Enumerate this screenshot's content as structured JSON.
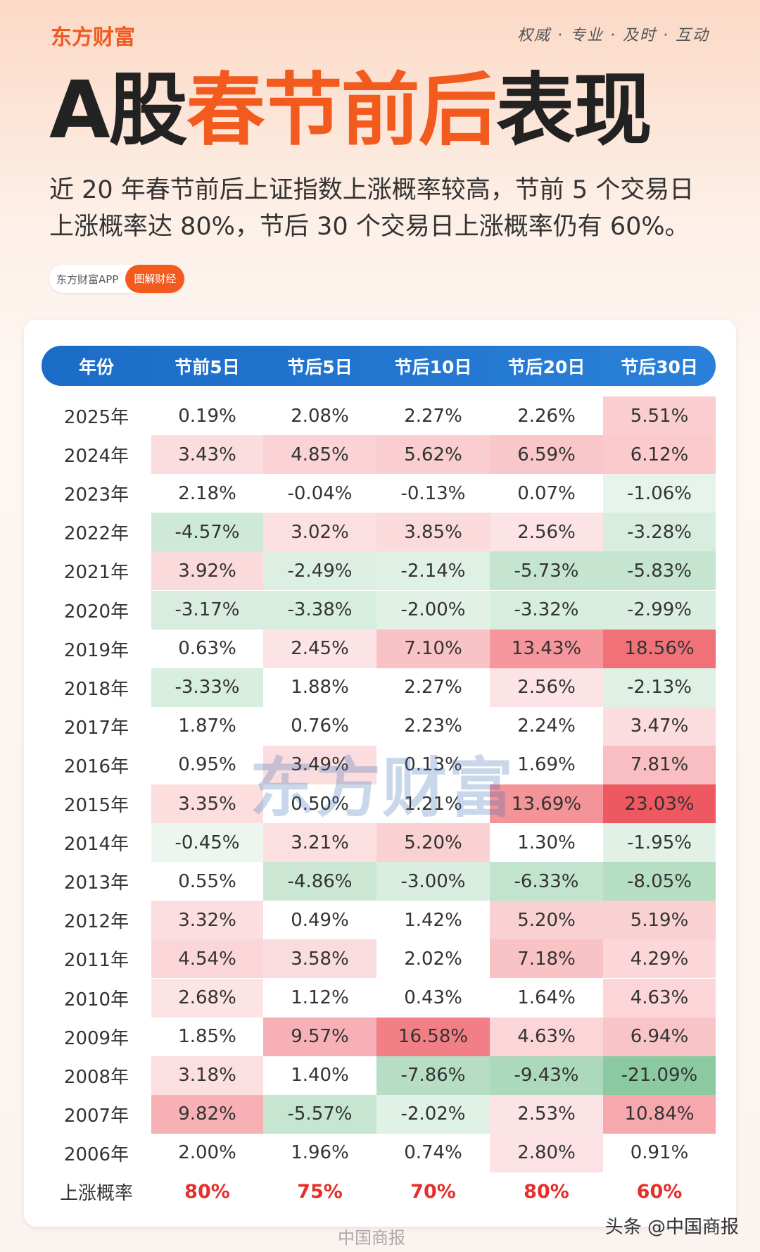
{
  "header": {
    "logo": "东方财富",
    "slogan": "权威 · 专业 · 及时 · 互动",
    "title": [
      "A股",
      "春节前后",
      "表现"
    ],
    "subtitle": "近 20 年春节前后上证指数上涨概率较高，节前 5 个交易日上涨概率达 80%，节后 30 个交易日上涨概率仍有 60%。",
    "tags": [
      "东方财富APP",
      "图解财经"
    ]
  },
  "table": {
    "columns": [
      "年份",
      "节前5日",
      "节后5日",
      "节后10日",
      "节后20日",
      "节后30日"
    ],
    "rows": [
      [
        "2025年",
        "0.19%",
        "2.08%",
        "2.27%",
        "2.26%",
        "5.51%"
      ],
      [
        "2024年",
        "3.43%",
        "4.85%",
        "5.62%",
        "6.59%",
        "6.12%"
      ],
      [
        "2023年",
        "2.18%",
        "-0.04%",
        "-0.13%",
        "0.07%",
        "-1.06%"
      ],
      [
        "2022年",
        "-4.57%",
        "3.02%",
        "3.85%",
        "2.56%",
        "-3.28%"
      ],
      [
        "2021年",
        "3.92%",
        "-2.49%",
        "-2.14%",
        "-5.73%",
        "-5.83%"
      ],
      [
        "2020年",
        "-3.17%",
        "-3.38%",
        "-2.00%",
        "-3.32%",
        "-2.99%"
      ],
      [
        "2019年",
        "0.63%",
        "2.45%",
        "7.10%",
        "13.43%",
        "18.56%"
      ],
      [
        "2018年",
        "-3.33%",
        "1.88%",
        "2.27%",
        "2.56%",
        "-2.13%"
      ],
      [
        "2017年",
        "1.87%",
        "0.76%",
        "2.23%",
        "2.24%",
        "3.47%"
      ],
      [
        "2016年",
        "0.95%",
        "3.49%",
        "0.13%",
        "1.69%",
        "7.81%"
      ],
      [
        "2015年",
        "3.35%",
        "0.50%",
        "1.21%",
        "13.69%",
        "23.03%"
      ],
      [
        "2014年",
        "-0.45%",
        "3.21%",
        "5.20%",
        "1.30%",
        "-1.95%"
      ],
      [
        "2013年",
        "0.55%",
        "-4.86%",
        "-3.00%",
        "-6.33%",
        "-8.05%"
      ],
      [
        "2012年",
        "3.32%",
        "0.49%",
        "1.42%",
        "5.20%",
        "5.19%"
      ],
      [
        "2011年",
        "4.54%",
        "3.58%",
        "2.02%",
        "7.18%",
        "4.29%"
      ],
      [
        "2010年",
        "2.68%",
        "1.12%",
        "0.43%",
        "1.64%",
        "4.63%"
      ],
      [
        "2009年",
        "1.85%",
        "9.57%",
        "16.58%",
        "4.63%",
        "6.94%"
      ],
      [
        "2008年",
        "3.18%",
        "1.40%",
        "-7.86%",
        "-9.43%",
        "-21.09%"
      ],
      [
        "2007年",
        "9.82%",
        "-5.57%",
        "-2.02%",
        "2.53%",
        "10.84%"
      ],
      [
        "2006年",
        "2.00%",
        "1.96%",
        "0.74%",
        "2.80%",
        "0.91%"
      ]
    ],
    "summary": [
      "上涨概率",
      "80%",
      "75%",
      "70%",
      "80%",
      "60%"
    ]
  },
  "watermark": "东方财富",
  "footer": {
    "weibo": "中国商报",
    "toutiao": "头条 @中国商报"
  }
}
